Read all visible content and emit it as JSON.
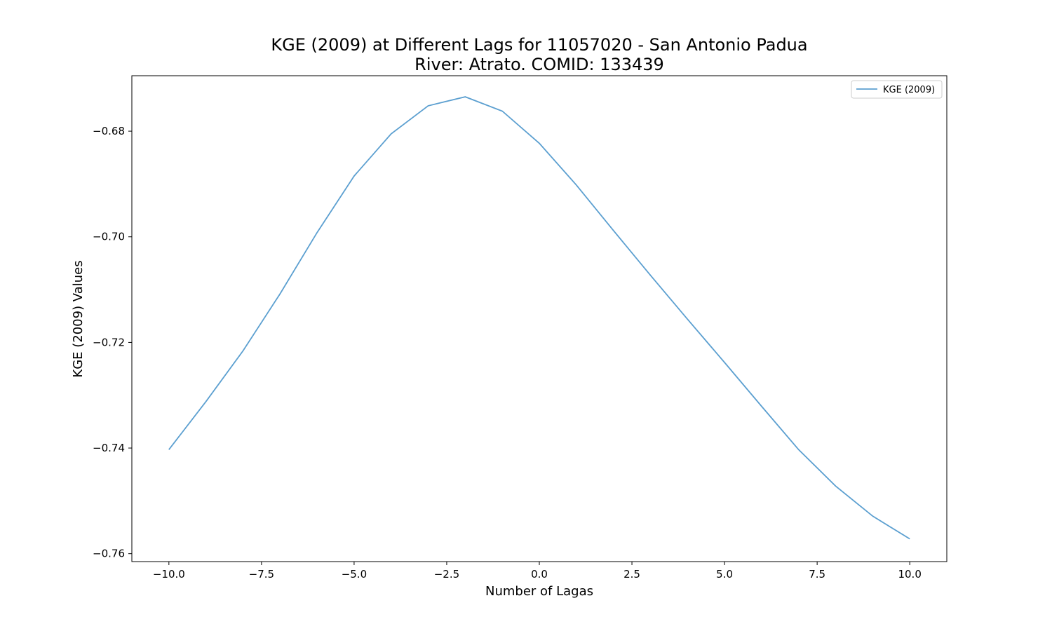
{
  "chart_data": {
    "type": "line",
    "title_line1": "KGE (2009) at Different Lags for 11057020 - San Antonio Padua",
    "title_line2": "River: Atrato. COMID: 133439",
    "xlabel": "Number of Lagas",
    "ylabel": "KGE (2009) Values",
    "xlim": [
      -11,
      11
    ],
    "ylim": [
      -0.7615,
      -0.6695
    ],
    "xticks": [
      -10.0,
      -7.5,
      -5.0,
      -2.5,
      0.0,
      2.5,
      5.0,
      7.5,
      10.0
    ],
    "xtick_labels": [
      "−10.0",
      "−7.5",
      "−5.0",
      "−2.5",
      "0.0",
      "2.5",
      "5.0",
      "7.5",
      "10.0"
    ],
    "yticks": [
      -0.68,
      -0.7,
      -0.72,
      -0.74,
      -0.76
    ],
    "ytick_labels": [
      "−0.68",
      "−0.70",
      "−0.72",
      "−0.74",
      "−0.76"
    ],
    "grid": false,
    "legend_position": "top-right",
    "color": "#5b9fd0",
    "series": [
      {
        "name": "KGE (2009)",
        "x": [
          -10,
          -9,
          -8,
          -7,
          -6,
          -5,
          -4,
          -3,
          -2,
          -1,
          0,
          1,
          2,
          3,
          4,
          5,
          6,
          7,
          8,
          9,
          10
        ],
        "values": [
          -0.7403,
          -0.7312,
          -0.7216,
          -0.7108,
          -0.6992,
          -0.6885,
          -0.6805,
          -0.6752,
          -0.6735,
          -0.6762,
          -0.6823,
          -0.6902,
          -0.6988,
          -0.7073,
          -0.7156,
          -0.7238,
          -0.7321,
          -0.7403,
          -0.7472,
          -0.7529,
          -0.7572
        ]
      }
    ]
  }
}
